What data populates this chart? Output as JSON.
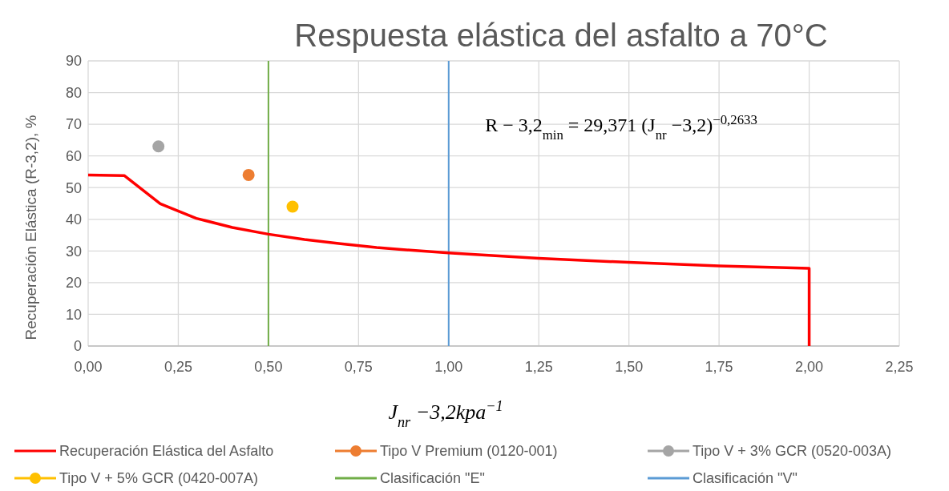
{
  "chart_data": {
    "type": "line",
    "title": "Respuesta elástica del asfalto a 70°C",
    "xlabel": "J$_{nr}$ −3,2kpa$^{−1}$",
    "ylabel": "Recuperación Elástica (R-3,2), %",
    "xlim": [
      0,
      2.25
    ],
    "xticks": [
      {
        "value": 0,
        "label": "0,00"
      },
      {
        "value": 0.25,
        "label": "0,25"
      },
      {
        "value": 0.5,
        "label": "0,50"
      },
      {
        "value": 0.75,
        "label": "0,75"
      },
      {
        "value": 1,
        "label": "1,00"
      },
      {
        "value": 1.25,
        "label": "1,25"
      },
      {
        "value": 1.5,
        "label": "1,50"
      },
      {
        "value": 1.75,
        "label": "1,75"
      },
      {
        "value": 2,
        "label": "2,00"
      },
      {
        "value": 2.25,
        "label": "2,25"
      }
    ],
    "ylim": [
      0,
      90
    ],
    "yticks": [
      0,
      10,
      20,
      30,
      40,
      50,
      60,
      70,
      80,
      90
    ],
    "grid": true,
    "legend": "bottom",
    "series": [
      {
        "name": "Recuperación Elástica del Asfalto",
        "marker": "none",
        "color": "#ff0000",
        "x": [
          0,
          0.1,
          0.2,
          0.3,
          0.4,
          0.5,
          0.6,
          0.7,
          0.8,
          0.9,
          1,
          1.25,
          1.5,
          1.75,
          2,
          2
        ],
        "values": [
          54,
          53.8,
          44.9,
          40.3,
          37.4,
          35.3,
          33.6,
          32.3,
          31.1,
          30.2,
          29.4,
          27.7,
          26.4,
          25.3,
          24.5,
          0
        ]
      },
      {
        "name": "Tipo V Premium (0120-001)",
        "type": "scatter",
        "marker": "circle",
        "color": "#ed7d31",
        "x": [
          0.445
        ],
        "values": [
          54
        ]
      },
      {
        "name": "Tipo V + 3% GCR (0520-003A)",
        "type": "scatter",
        "marker": "circle",
        "color": "#a5a5a5",
        "x": [
          0.195
        ],
        "values": [
          63
        ]
      },
      {
        "name": "Tipo V + 5% GCR (0420-007A)",
        "type": "scatter",
        "marker": "circle",
        "color": "#ffc000",
        "x": [
          0.567
        ],
        "values": [
          44
        ]
      }
    ],
    "ref_lines": [
      {
        "axis": "x",
        "value": 0.5,
        "label": "Clasificación \"E\"",
        "color": "#70ad47"
      },
      {
        "axis": "x",
        "value": 1,
        "label": "Clasificación \"V\"",
        "color": "#5b9bd5"
      }
    ],
    "annotations": [
      "R − 3,2$_{min}$ = 29,371 (J$_{nr}$ −3,2)$^{−0,2633}$"
    ]
  }
}
